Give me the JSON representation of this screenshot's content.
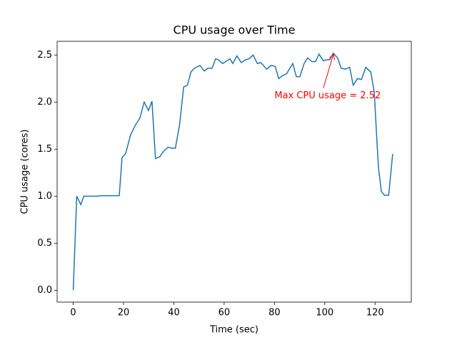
{
  "chart_data": {
    "type": "line",
    "title": "CPU usage over Time",
    "xlabel": "Time (sec)",
    "ylabel": "CPU usage (cores)",
    "x": [
      0,
      1.4,
      3,
      4.2,
      6.2,
      9.3,
      11.3,
      16.3,
      18.3,
      19.4,
      20.8,
      22.8,
      24.8,
      26.5,
      28.2,
      29.9,
      31.3,
      32.7,
      34.4,
      36,
      37.7,
      39.2,
      40.6,
      42.3,
      43.9,
      45.4,
      46.8,
      48.2,
      50.4,
      52.1,
      53.5,
      55.2,
      56.6,
      57.7,
      59.4,
      61.1,
      62.3,
      63.4,
      65.1,
      66.8,
      68.5,
      69.9,
      71.5,
      73.2,
      74.6,
      76.9,
      78.6,
      80.3,
      81.7,
      83.1,
      84.8,
      85.9,
      87.3,
      88.7,
      90.1,
      91.8,
      93.2,
      94.9,
      96.3,
      97.7,
      99.4,
      100.8,
      102,
      103.4,
      105.1,
      106.5,
      108.2,
      109.9,
      111.3,
      113,
      114.6,
      116.3,
      118.3,
      119.7,
      120.8,
      121.4,
      122.5,
      123.7,
      125.4,
      127
    ],
    "series": [
      {
        "name": "CPU usage",
        "color": "#1f77b4",
        "values": [
          0,
          1.0,
          0.91,
          1.0,
          1.0,
          1.0,
          1.005,
          1.005,
          1.005,
          1.41,
          1.45,
          1.65,
          1.76,
          1.83,
          2.0,
          1.91,
          2.01,
          1.4,
          1.42,
          1.48,
          1.52,
          1.51,
          1.51,
          1.76,
          2.16,
          2.18,
          2.32,
          2.36,
          2.39,
          2.33,
          2.36,
          2.36,
          2.46,
          2.45,
          2.41,
          2.44,
          2.46,
          2.41,
          2.49,
          2.42,
          2.45,
          2.46,
          2.5,
          2.41,
          2.42,
          2.35,
          2.39,
          2.38,
          2.25,
          2.28,
          2.3,
          2.35,
          2.41,
          2.27,
          2.27,
          2.41,
          2.47,
          2.43,
          2.43,
          2.51,
          2.44,
          2.45,
          2.45,
          2.52,
          2.47,
          2.36,
          2.35,
          2.37,
          2.18,
          2.25,
          2.24,
          2.37,
          2.32,
          2.1,
          1.55,
          1.29,
          1.05,
          1.01,
          1.01,
          1.45
        ]
      }
    ],
    "annotation": "Max CPU usage = 2.52",
    "xlim": [
      -6.4,
      134.4
    ],
    "xticks": [
      0,
      20,
      40,
      60,
      80,
      100,
      120
    ],
    "ylim": [
      -0.126,
      2.646
    ],
    "yticks": [
      {
        "value": 0,
        "label": "0.0"
      },
      0.5,
      {
        "value": 1,
        "label": "1.0"
      },
      1.5,
      {
        "value": 2,
        "label": "2.0"
      },
      2.5
    ]
  }
}
